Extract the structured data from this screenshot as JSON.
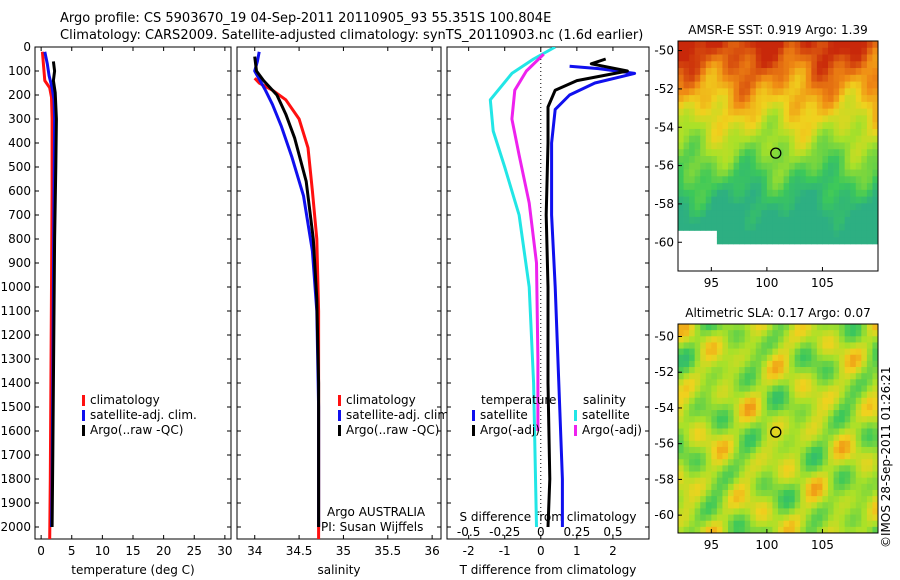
{
  "header": {
    "line1": "Argo profile: CS 5903670_19 04-Sep-2011 20110905_93 55.351S 100.804E",
    "line2": "Climatology: CARS2009. Satellite-adjusted climatology: synTS_20110903.nc (1.6d earlier)"
  },
  "credit": "©IMOS 28-Sep-2011 01:26:21",
  "argo_info": [
    "Argo AUSTRALIA",
    "PI: Susan Wijffels"
  ],
  "colors": {
    "climatology": "#ff1010",
    "satellite": "#1010ee",
    "argo": "#000000",
    "sal_sat": "#22e6e6",
    "sal_argo": "#ee22ee"
  },
  "chart_data": [
    {
      "id": "temperature",
      "type": "line",
      "xlabel": "temperature (deg C)",
      "ylabel": "",
      "xlim": [
        -1,
        31
      ],
      "ylim": [
        2050,
        0
      ],
      "xticks": [
        0,
        5,
        10,
        15,
        20,
        25,
        30
      ],
      "yticks": [
        0,
        100,
        200,
        300,
        400,
        500,
        600,
        700,
        800,
        900,
        1000,
        1100,
        1200,
        1300,
        1400,
        1500,
        1600,
        1700,
        1800,
        1900,
        2000
      ],
      "legend": [
        "climatology",
        "satellite-adj. clim.",
        "Argo(..raw -QC)"
      ],
      "series": [
        {
          "name": "climatology",
          "color": "#ff1010",
          "points": [
            [
              0.2,
              20
            ],
            [
              0.4,
              80
            ],
            [
              0.6,
              140
            ],
            [
              1.4,
              170
            ],
            [
              1.7,
              210
            ],
            [
              1.8,
              300
            ],
            [
              1.8,
              600
            ],
            [
              1.7,
              1000
            ],
            [
              1.6,
              1400
            ],
            [
              1.5,
              1800
            ],
            [
              1.4,
              2050
            ]
          ]
        },
        {
          "name": "satellite-adj. clim.",
          "color": "#1010ee",
          "points": [
            [
              0.6,
              20
            ],
            [
              1.0,
              70
            ],
            [
              1.3,
              120
            ],
            [
              1.8,
              170
            ],
            [
              2.1,
              220
            ],
            [
              2.2,
              300
            ],
            [
              2.1,
              600
            ],
            [
              2.0,
              1000
            ],
            [
              1.9,
              1400
            ],
            [
              1.8,
              1800
            ],
            [
              1.7,
              2000
            ]
          ]
        },
        {
          "name": "Argo(..raw -QC)",
          "color": "#000000",
          "points": [
            [
              2.0,
              60
            ],
            [
              2.2,
              100
            ],
            [
              2.0,
              140
            ],
            [
              2.3,
              190
            ],
            [
              2.5,
              300
            ],
            [
              2.4,
              500
            ],
            [
              2.2,
              800
            ],
            [
              2.1,
              1100
            ],
            [
              2.0,
              1400
            ],
            [
              1.9,
              1700
            ],
            [
              1.8,
              2000
            ]
          ]
        }
      ]
    },
    {
      "id": "salinity",
      "type": "line",
      "xlabel": "salinity",
      "ylabel": "",
      "xlim": [
        33.8,
        36.1
      ],
      "ylim": [
        2050,
        0
      ],
      "xticks": [
        34,
        34.5,
        35,
        35.5,
        36
      ],
      "legend": [
        "climatology",
        "satellite-adj. clim.",
        "Argo(..raw -QC)"
      ],
      "series": [
        {
          "name": "climatology",
          "color": "#ff1010",
          "points": [
            [
              34.0,
              130
            ],
            [
              34.05,
              150
            ],
            [
              34.2,
              180
            ],
            [
              34.35,
              220
            ],
            [
              34.5,
              300
            ],
            [
              34.6,
              420
            ],
            [
              34.65,
              600
            ],
            [
              34.7,
              800
            ],
            [
              34.72,
              1100
            ],
            [
              34.72,
              1500
            ],
            [
              34.72,
              2050
            ]
          ]
        },
        {
          "name": "satellite-adj. clim.",
          "color": "#1010ee",
          "points": [
            [
              34.05,
              20
            ],
            [
              34.03,
              60
            ],
            [
              34.0,
              100
            ],
            [
              34.06,
              140
            ],
            [
              34.12,
              180
            ],
            [
              34.2,
              240
            ],
            [
              34.3,
              330
            ],
            [
              34.42,
              460
            ],
            [
              34.55,
              620
            ],
            [
              34.65,
              850
            ],
            [
              34.7,
              1100
            ],
            [
              34.72,
              1500
            ],
            [
              34.72,
              2000
            ]
          ]
        },
        {
          "name": "Argo(..raw -QC)",
          "color": "#000000",
          "points": [
            [
              34.0,
              40
            ],
            [
              34.02,
              100
            ],
            [
              34.1,
              140
            ],
            [
              34.25,
              200
            ],
            [
              34.35,
              280
            ],
            [
              34.45,
              380
            ],
            [
              34.58,
              560
            ],
            [
              34.66,
              800
            ],
            [
              34.7,
              1050
            ],
            [
              34.72,
              1400
            ],
            [
              34.72,
              2000
            ]
          ]
        }
      ]
    },
    {
      "id": "differences",
      "type": "line",
      "xlabel": "T difference from climatology",
      "x2label": "S difference from climatology",
      "xlim": [
        -2.6,
        3.0
      ],
      "ylim": [
        2050,
        0
      ],
      "xticks": [
        -2,
        -1,
        0,
        1,
        2
      ],
      "x2ticks": [
        -0.5,
        -0.25,
        0,
        0.25,
        0.5
      ],
      "x2lim": [
        -0.65,
        0.75
      ],
      "legend_temperature_title": "temperature",
      "legend_salinity_title": "salinity",
      "legend": [
        "satellite",
        "Argo(-adj)",
        "satellite",
        "Argo(-adj)"
      ],
      "series": [
        {
          "name": "satellite",
          "group": "temperature",
          "axis": "T",
          "color": "#1010ee",
          "points": [
            [
              0.8,
              80
            ],
            [
              1.6,
              90
            ],
            [
              2.6,
              110
            ],
            [
              1.5,
              150
            ],
            [
              0.8,
              200
            ],
            [
              0.4,
              260
            ],
            [
              0.3,
              400
            ],
            [
              0.3,
              700
            ],
            [
              0.4,
              1000
            ],
            [
              0.5,
              1400
            ],
            [
              0.6,
              1800
            ],
            [
              0.6,
              2000
            ]
          ]
        },
        {
          "name": "Argo(-adj)",
          "group": "temperature",
          "axis": "T",
          "color": "#000000",
          "points": [
            [
              1.8,
              50
            ],
            [
              1.4,
              70
            ],
            [
              2.4,
              100
            ],
            [
              1.0,
              140
            ],
            [
              0.4,
              180
            ],
            [
              0.2,
              250
            ],
            [
              0.2,
              400
            ],
            [
              0.15,
              700
            ],
            [
              0.2,
              1000
            ],
            [
              0.2,
              1400
            ],
            [
              0.25,
              1800
            ],
            [
              0.2,
              2000
            ]
          ]
        },
        {
          "name": "satellite",
          "group": "salinity",
          "axis": "S",
          "color": "#22e6e6",
          "points": [
            [
              0.1,
              0
            ],
            [
              -0.05,
              50
            ],
            [
              -0.2,
              110
            ],
            [
              -0.35,
              220
            ],
            [
              -0.33,
              350
            ],
            [
              -0.25,
              500
            ],
            [
              -0.15,
              700
            ],
            [
              -0.08,
              1000
            ],
            [
              -0.05,
              1400
            ],
            [
              -0.03,
              2000
            ]
          ]
        },
        {
          "name": "Argo(-adj)",
          "group": "salinity",
          "axis": "S",
          "color": "#ee22ee",
          "points": [
            [
              0.02,
              30
            ],
            [
              -0.1,
              100
            ],
            [
              -0.18,
              180
            ],
            [
              -0.2,
              300
            ],
            [
              -0.15,
              450
            ],
            [
              -0.08,
              650
            ],
            [
              -0.03,
              900
            ],
            [
              -0.02,
              1300
            ],
            [
              -0.02,
              1600
            ]
          ]
        }
      ]
    },
    {
      "id": "sst_map",
      "type": "heatmap",
      "title": "AMSR-E SST: 0.919 Argo: 1.39",
      "xlim": [
        92,
        110
      ],
      "ylim": [
        -61.5,
        -49.5
      ],
      "xticks": [
        95,
        100,
        105
      ],
      "yticks": [
        -50,
        -52,
        -54,
        -56,
        -58,
        -60
      ],
      "marker": [
        100.8,
        -55.35
      ]
    },
    {
      "id": "sla_map",
      "type": "heatmap",
      "title": "Altimetric SLA: 0.17 Argo: 0.07",
      "xlim": [
        92,
        110
      ],
      "ylim": [
        -61.0,
        -49.3
      ],
      "xticks": [
        95,
        100,
        105
      ],
      "yticks": [
        -50,
        -52,
        -54,
        -56,
        -58,
        -60
      ],
      "marker": [
        100.8,
        -55.35
      ]
    }
  ]
}
